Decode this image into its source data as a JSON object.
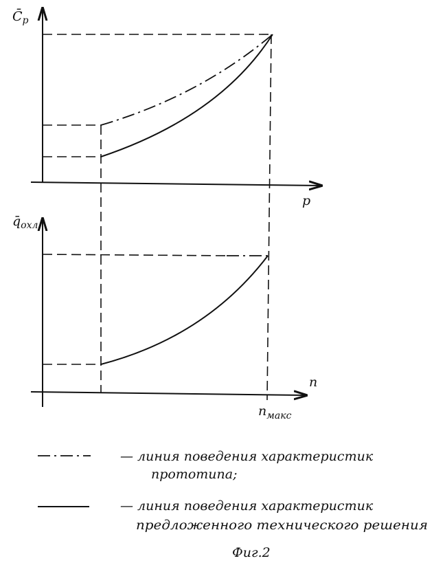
{
  "top_graph": {
    "y_label": {
      "symbol": "C̄",
      "subscript": "p"
    },
    "x_label": "p"
  },
  "bottom_graph": {
    "y_label": {
      "symbol": "q̄",
      "subscript": "охл"
    },
    "x_label": "n",
    "x_mark": {
      "symbol": "n",
      "subscript": "макс"
    }
  },
  "legend": [
    {
      "lines": [
        "— линия поведения характеристик",
        "прототипа;"
      ]
    },
    {
      "lines": [
        "— линия поведения характеристик",
        "предложенного технического решения"
      ]
    }
  ],
  "caption": "Фиг.2"
}
